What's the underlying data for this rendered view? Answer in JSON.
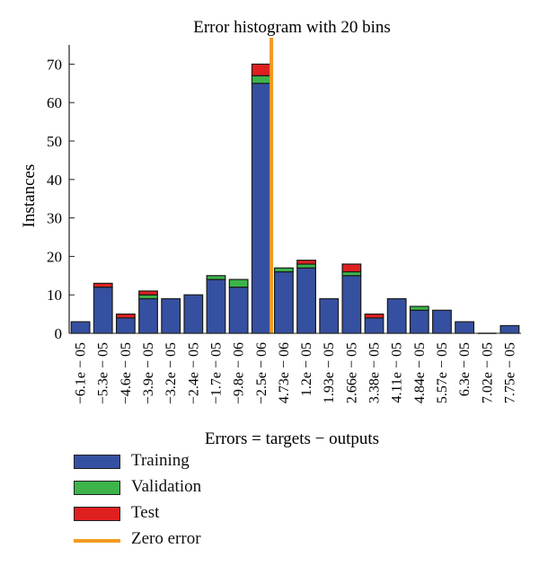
{
  "chart_data": {
    "type": "bar",
    "title": "Error histogram with 20 bins",
    "xlabel": "Errors = targets − outputs",
    "ylabel": "Instances",
    "ylim": [
      0,
      75
    ],
    "yticks": [
      0,
      10,
      20,
      30,
      40,
      50,
      60,
      70
    ],
    "categories": [
      "−6.1e − 05",
      "−5.3e − 05",
      "−4.6e − 05",
      "−3.9e − 05",
      "−3.2e − 05",
      "−2.4e − 05",
      "−1.7e − 05",
      "−9.8e − 06",
      "−2.5e − 06",
      "4.73e − 06",
      "1.2e − 05",
      "1.93e − 05",
      "2.66e − 05",
      "3.38e − 05",
      "4.11e − 05",
      "4.84e − 05",
      "5.57e − 05",
      "6.3e − 05",
      "7.02e − 05",
      "7.75e − 05"
    ],
    "stacked": true,
    "series": [
      {
        "name": "Training",
        "color": "#3550a0",
        "values": [
          3,
          12,
          4,
          9,
          9,
          10,
          14,
          12,
          65,
          16,
          17,
          9,
          15,
          4,
          9,
          6,
          6,
          3,
          0,
          2
        ]
      },
      {
        "name": "Validation",
        "color": "#3cb44a",
        "values": [
          0,
          0,
          0,
          1,
          0,
          0,
          1,
          2,
          2,
          1,
          1,
          0,
          1,
          0,
          0,
          1,
          0,
          0,
          0,
          0
        ]
      },
      {
        "name": "Test",
        "color": "#e02020",
        "values": [
          0,
          1,
          1,
          1,
          0,
          0,
          0,
          0,
          3,
          0,
          1,
          0,
          2,
          1,
          0,
          0,
          0,
          0,
          0,
          0
        ]
      }
    ],
    "zero_error": {
      "name": "Zero error",
      "color": "#f39a1f",
      "x_bin_index": 8.45
    },
    "legend_position": "below"
  }
}
